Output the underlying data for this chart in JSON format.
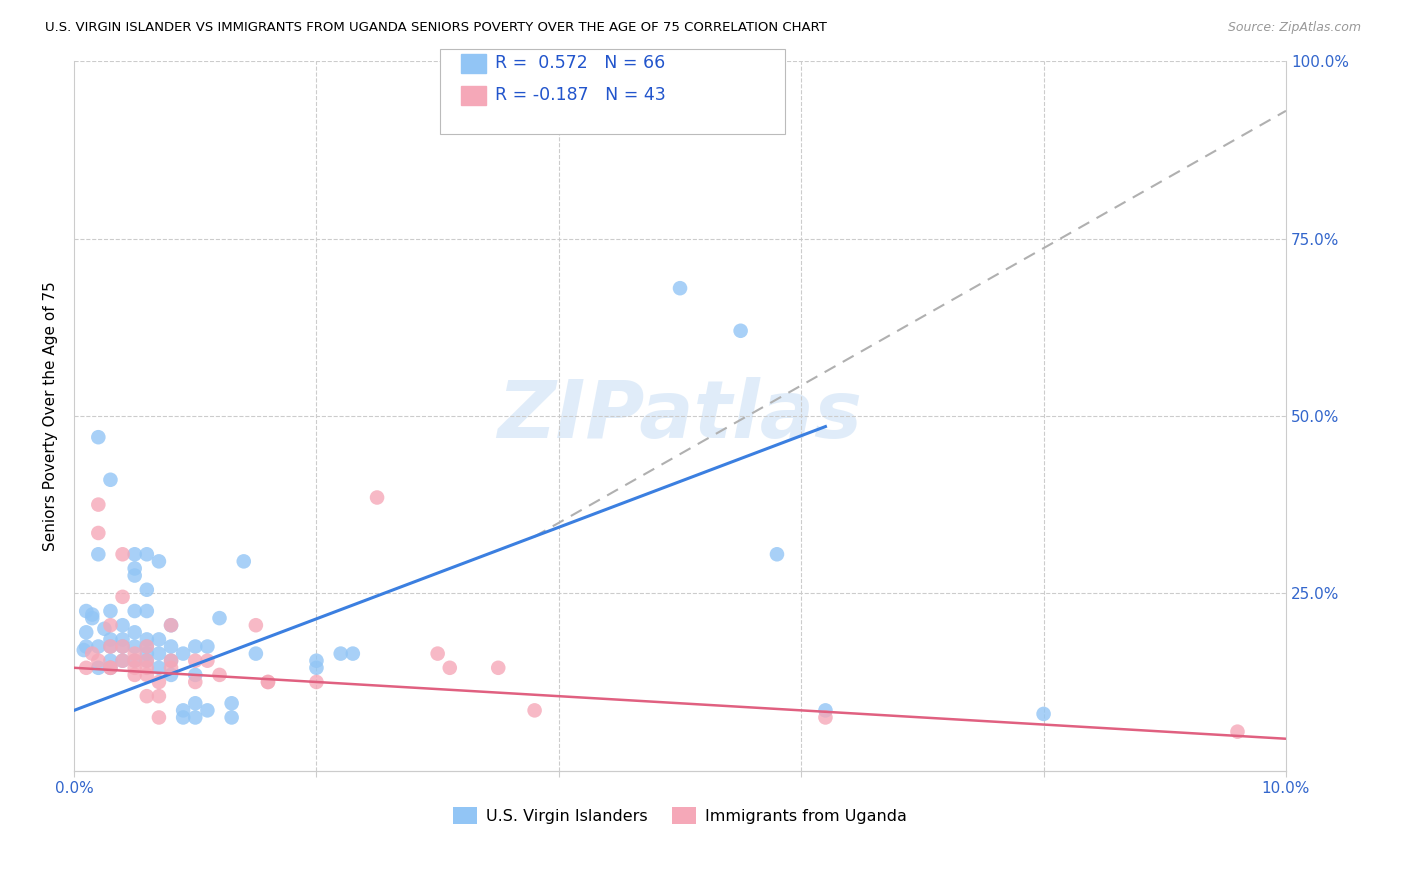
{
  "title": "U.S. VIRGIN ISLANDER VS IMMIGRANTS FROM UGANDA SENIORS POVERTY OVER THE AGE OF 75 CORRELATION CHART",
  "source": "Source: ZipAtlas.com",
  "ylabel": "Seniors Poverty Over the Age of 75",
  "xlim": [
    0,
    0.1
  ],
  "ylim": [
    0,
    1.0
  ],
  "R_blue": 0.572,
  "N_blue": 66,
  "R_pink": -0.187,
  "N_pink": 43,
  "blue_color": "#92C5F5",
  "pink_color": "#F5A8B8",
  "blue_line_color": "#3B7FE0",
  "pink_line_color": "#E06080",
  "dashed_line_color": "#B0B0B0",
  "watermark_color": "#C8DEF5",
  "legend_label_blue": "U.S. Virgin Islanders",
  "legend_label_pink": "Immigrants from Uganda",
  "blue_line": [
    [
      0.0,
      0.085
    ],
    [
      0.062,
      0.485
    ]
  ],
  "pink_line": [
    [
      0.0,
      0.145
    ],
    [
      0.1,
      0.045
    ]
  ],
  "dash_line": [
    [
      0.038,
      0.33
    ],
    [
      0.1,
      0.93
    ]
  ],
  "blue_scatter": [
    [
      0.0008,
      0.17
    ],
    [
      0.001,
      0.195
    ],
    [
      0.0015,
      0.215
    ],
    [
      0.0015,
      0.22
    ],
    [
      0.002,
      0.305
    ],
    [
      0.002,
      0.175
    ],
    [
      0.0025,
      0.2
    ],
    [
      0.003,
      0.175
    ],
    [
      0.003,
      0.155
    ],
    [
      0.003,
      0.145
    ],
    [
      0.003,
      0.225
    ],
    [
      0.004,
      0.185
    ],
    [
      0.004,
      0.205
    ],
    [
      0.004,
      0.175
    ],
    [
      0.004,
      0.155
    ],
    [
      0.005,
      0.195
    ],
    [
      0.005,
      0.225
    ],
    [
      0.005,
      0.175
    ],
    [
      0.005,
      0.155
    ],
    [
      0.006,
      0.175
    ],
    [
      0.006,
      0.255
    ],
    [
      0.006,
      0.185
    ],
    [
      0.006,
      0.225
    ],
    [
      0.006,
      0.165
    ],
    [
      0.006,
      0.155
    ],
    [
      0.007,
      0.165
    ],
    [
      0.007,
      0.185
    ],
    [
      0.007,
      0.145
    ],
    [
      0.007,
      0.295
    ],
    [
      0.008,
      0.175
    ],
    [
      0.008,
      0.155
    ],
    [
      0.008,
      0.135
    ],
    [
      0.008,
      0.205
    ],
    [
      0.009,
      0.165
    ],
    [
      0.009,
      0.075
    ],
    [
      0.009,
      0.085
    ],
    [
      0.01,
      0.075
    ],
    [
      0.01,
      0.095
    ],
    [
      0.01,
      0.135
    ],
    [
      0.01,
      0.175
    ],
    [
      0.011,
      0.085
    ],
    [
      0.011,
      0.175
    ],
    [
      0.012,
      0.215
    ],
    [
      0.013,
      0.075
    ],
    [
      0.013,
      0.095
    ],
    [
      0.014,
      0.295
    ],
    [
      0.015,
      0.165
    ],
    [
      0.02,
      0.145
    ],
    [
      0.02,
      0.155
    ],
    [
      0.022,
      0.165
    ],
    [
      0.023,
      0.165
    ],
    [
      0.002,
      0.47
    ],
    [
      0.003,
      0.41
    ],
    [
      0.005,
      0.285
    ],
    [
      0.005,
      0.275
    ],
    [
      0.005,
      0.305
    ],
    [
      0.006,
      0.305
    ],
    [
      0.05,
      0.68
    ],
    [
      0.055,
      0.62
    ],
    [
      0.058,
      0.305
    ],
    [
      0.062,
      0.085
    ],
    [
      0.08,
      0.08
    ],
    [
      0.001,
      0.225
    ],
    [
      0.001,
      0.175
    ],
    [
      0.002,
      0.145
    ],
    [
      0.003,
      0.185
    ]
  ],
  "pink_scatter": [
    [
      0.001,
      0.145
    ],
    [
      0.0015,
      0.165
    ],
    [
      0.002,
      0.375
    ],
    [
      0.002,
      0.335
    ],
    [
      0.002,
      0.155
    ],
    [
      0.003,
      0.145
    ],
    [
      0.003,
      0.175
    ],
    [
      0.003,
      0.205
    ],
    [
      0.003,
      0.145
    ],
    [
      0.004,
      0.305
    ],
    [
      0.004,
      0.155
    ],
    [
      0.004,
      0.175
    ],
    [
      0.004,
      0.245
    ],
    [
      0.005,
      0.145
    ],
    [
      0.005,
      0.135
    ],
    [
      0.005,
      0.165
    ],
    [
      0.005,
      0.155
    ],
    [
      0.006,
      0.175
    ],
    [
      0.006,
      0.155
    ],
    [
      0.006,
      0.145
    ],
    [
      0.006,
      0.135
    ],
    [
      0.006,
      0.105
    ],
    [
      0.007,
      0.105
    ],
    [
      0.007,
      0.125
    ],
    [
      0.007,
      0.075
    ],
    [
      0.008,
      0.205
    ],
    [
      0.008,
      0.145
    ],
    [
      0.008,
      0.155
    ],
    [
      0.01,
      0.155
    ],
    [
      0.01,
      0.125
    ],
    [
      0.011,
      0.155
    ],
    [
      0.012,
      0.135
    ],
    [
      0.015,
      0.205
    ],
    [
      0.016,
      0.125
    ],
    [
      0.016,
      0.125
    ],
    [
      0.02,
      0.125
    ],
    [
      0.025,
      0.385
    ],
    [
      0.03,
      0.165
    ],
    [
      0.031,
      0.145
    ],
    [
      0.035,
      0.145
    ],
    [
      0.038,
      0.085
    ],
    [
      0.062,
      0.075
    ],
    [
      0.096,
      0.055
    ]
  ]
}
